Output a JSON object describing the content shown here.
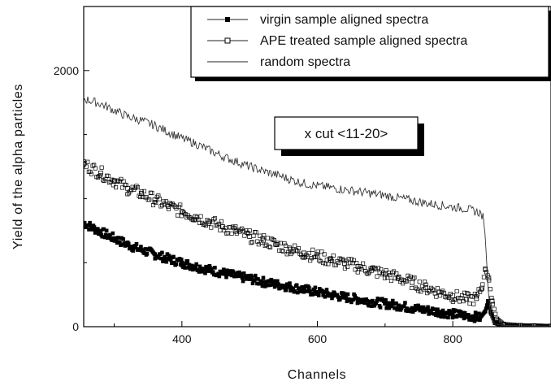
{
  "chart_data": {
    "type": "scatter",
    "title": "",
    "xlabel": "Channels",
    "ylabel": "Yield of the alpha particles",
    "xlim": [
      255,
      945
    ],
    "ylim": [
      0,
      2500
    ],
    "xticks": [
      400,
      600,
      800
    ],
    "yticks": [
      0,
      2000
    ],
    "grid": false,
    "legend_position": "top-right",
    "annotation": "x cut <11-20>",
    "series": [
      {
        "name": "virgin sample aligned spectra",
        "marker": "filled-square",
        "points": [
          [
            255,
            810
          ],
          [
            280,
            740
          ],
          [
            300,
            690
          ],
          [
            320,
            640
          ],
          [
            340,
            600
          ],
          [
            360,
            565
          ],
          [
            380,
            530
          ],
          [
            400,
            500
          ],
          [
            420,
            470
          ],
          [
            440,
            445
          ],
          [
            460,
            420
          ],
          [
            480,
            395
          ],
          [
            500,
            375
          ],
          [
            520,
            350
          ],
          [
            540,
            330
          ],
          [
            560,
            310
          ],
          [
            580,
            290
          ],
          [
            600,
            270
          ],
          [
            620,
            250
          ],
          [
            640,
            230
          ],
          [
            660,
            215
          ],
          [
            680,
            195
          ],
          [
            700,
            180
          ],
          [
            720,
            165
          ],
          [
            740,
            145
          ],
          [
            760,
            130
          ],
          [
            780,
            115
          ],
          [
            800,
            100
          ],
          [
            820,
            85
          ],
          [
            830,
            80
          ],
          [
            840,
            70
          ],
          [
            848,
            120
          ],
          [
            852,
            200
          ],
          [
            856,
            110
          ],
          [
            862,
            30
          ],
          [
            870,
            12
          ],
          [
            880,
            8
          ],
          [
            900,
            5
          ],
          [
            920,
            5
          ],
          [
            945,
            4
          ]
        ]
      },
      {
        "name": "APE treated sample aligned spectra",
        "marker": "open-square",
        "points": [
          [
            255,
            1270
          ],
          [
            280,
            1200
          ],
          [
            300,
            1140
          ],
          [
            320,
            1080
          ],
          [
            340,
            1040
          ],
          [
            360,
            990
          ],
          [
            380,
            940
          ],
          [
            400,
            900
          ],
          [
            420,
            860
          ],
          [
            440,
            820
          ],
          [
            460,
            780
          ],
          [
            480,
            745
          ],
          [
            500,
            705
          ],
          [
            520,
            675
          ],
          [
            540,
            640
          ],
          [
            560,
            605
          ],
          [
            580,
            575
          ],
          [
            600,
            550
          ],
          [
            620,
            520
          ],
          [
            640,
            495
          ],
          [
            660,
            470
          ],
          [
            680,
            440
          ],
          [
            700,
            410
          ],
          [
            720,
            380
          ],
          [
            740,
            345
          ],
          [
            760,
            305
          ],
          [
            780,
            270
          ],
          [
            800,
            240
          ],
          [
            820,
            215
          ],
          [
            835,
            220
          ],
          [
            843,
            300
          ],
          [
            848,
            450
          ],
          [
            853,
            380
          ],
          [
            858,
            200
          ],
          [
            865,
            60
          ],
          [
            875,
            20
          ],
          [
            900,
            10
          ],
          [
            920,
            8
          ],
          [
            945,
            5
          ]
        ]
      },
      {
        "name": "random spectra",
        "marker": "line",
        "points": [
          [
            255,
            1780
          ],
          [
            280,
            1740
          ],
          [
            300,
            1690
          ],
          [
            320,
            1640
          ],
          [
            340,
            1610
          ],
          [
            360,
            1570
          ],
          [
            380,
            1520
          ],
          [
            400,
            1470
          ],
          [
            420,
            1430
          ],
          [
            440,
            1380
          ],
          [
            460,
            1330
          ],
          [
            480,
            1290
          ],
          [
            500,
            1250
          ],
          [
            520,
            1215
          ],
          [
            540,
            1185
          ],
          [
            560,
            1150
          ],
          [
            580,
            1120
          ],
          [
            600,
            1100
          ],
          [
            620,
            1085
          ],
          [
            640,
            1070
          ],
          [
            660,
            1055
          ],
          [
            680,
            1040
          ],
          [
            700,
            1025
          ],
          [
            720,
            1005
          ],
          [
            740,
            985
          ],
          [
            760,
            965
          ],
          [
            780,
            950
          ],
          [
            800,
            935
          ],
          [
            820,
            920
          ],
          [
            840,
            890
          ],
          [
            845,
            850
          ],
          [
            848,
            700
          ],
          [
            852,
            300
          ],
          [
            856,
            80
          ],
          [
            862,
            20
          ],
          [
            875,
            10
          ],
          [
            900,
            8
          ],
          [
            945,
            5
          ]
        ]
      }
    ]
  }
}
